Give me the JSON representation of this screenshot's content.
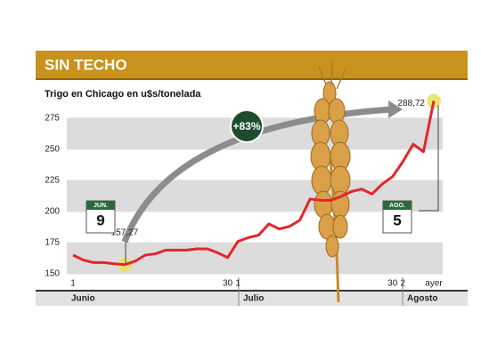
{
  "chart_data": {
    "type": "line",
    "title": "SIN TECHO",
    "subtitle": "Trigo en Chicago en u$s/tonelada",
    "annotation": "+83%",
    "categories": [
      "1",
      null,
      null,
      null,
      null,
      null,
      null,
      null,
      null,
      null,
      null,
      null,
      null,
      null,
      null,
      "30",
      "1",
      null,
      null,
      null,
      null,
      null,
      null,
      null,
      null,
      null,
      null,
      null,
      null,
      null,
      null,
      "30",
      "2",
      null,
      null,
      "ayer"
    ],
    "months": [
      "Junio",
      "Julio",
      "Agosto"
    ],
    "calendars": [
      {
        "month": "JUN.",
        "day": "9"
      },
      {
        "month": "AGO.",
        "day": "5"
      }
    ],
    "series": [
      {
        "name": "Trigo",
        "color": "#e2262b",
        "values": [
          165,
          161,
          159,
          159,
          158,
          157.27,
          160,
          165,
          166,
          169,
          169,
          169,
          170,
          170,
          167,
          163,
          176,
          179,
          181,
          190,
          186,
          188,
          193,
          210,
          209,
          209,
          212,
          216,
          218,
          214,
          222,
          228,
          240,
          254,
          248,
          288.72
        ],
        "value_labels": [
          null,
          null,
          null,
          null,
          null,
          "157,27",
          null,
          null,
          null,
          null,
          null,
          null,
          null,
          null,
          null,
          null,
          null,
          null,
          null,
          null,
          null,
          null,
          null,
          null,
          null,
          null,
          null,
          null,
          null,
          null,
          null,
          null,
          null,
          null,
          null,
          "288,72"
        ]
      }
    ],
    "ylim": [
      145,
      292
    ],
    "yticks": [
      150,
      175,
      200,
      225,
      250,
      275
    ],
    "grid": true
  }
}
